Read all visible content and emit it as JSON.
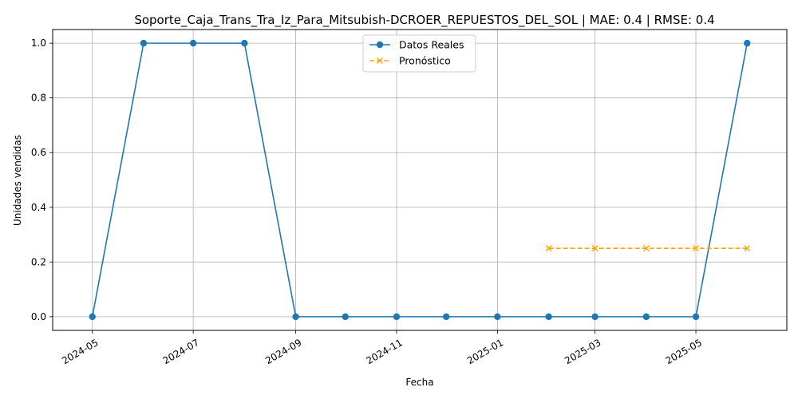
{
  "chart_data": {
    "type": "line",
    "title": "Soporte_Caja_Trans_Tra_Iz_Para_Mitsubish-DCROER_REPUESTOS_DEL_SOL | MAE: 0.4 | RMSE: 0.4",
    "xlabel": "Fecha",
    "ylabel": "Unidades vendidas",
    "xlim": [
      "2024-04-07",
      "2025-06-25"
    ],
    "ylim": [
      -0.05,
      1.05
    ],
    "x_ticks": [
      "2024-05",
      "2024-07",
      "2024-09",
      "2024-11",
      "2025-01",
      "2025-03",
      "2025-05"
    ],
    "y_ticks": [
      "0.0",
      "0.2",
      "0.4",
      "0.6",
      "0.8",
      "1.0"
    ],
    "y_tick_values": [
      0.0,
      0.2,
      0.4,
      0.6,
      0.8,
      1.0
    ],
    "grid": true,
    "legend_position": "top-center",
    "series": [
      {
        "name": "Datos Reales",
        "color": "#1f77b4",
        "style": "solid",
        "marker": "circle",
        "x": [
          "2024-05-01",
          "2024-06-01",
          "2024-07-01",
          "2024-08-01",
          "2024-09-01",
          "2024-10-01",
          "2024-11-01",
          "2024-12-01",
          "2025-01-01",
          "2025-02-01",
          "2025-03-01",
          "2025-04-01",
          "2025-05-01",
          "2025-06-01"
        ],
        "values": [
          0,
          1,
          1,
          1,
          0,
          0,
          0,
          0,
          0,
          0,
          0,
          0,
          0,
          1
        ]
      },
      {
        "name": "Pronóstico",
        "color": "#ffa500",
        "style": "dashed",
        "marker": "x",
        "x": [
          "2025-02-01",
          "2025-03-01",
          "2025-04-01",
          "2025-05-01",
          "2025-06-01"
        ],
        "values": [
          0.25,
          0.25,
          0.25,
          0.25,
          0.25
        ]
      }
    ]
  }
}
